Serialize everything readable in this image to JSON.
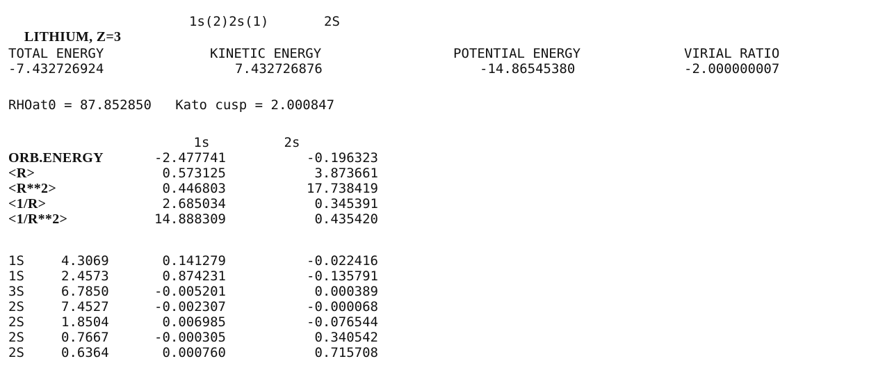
{
  "header": {
    "element": "LITHIUM, Z=3",
    "configuration": "1s(2)2s(1)",
    "term": "2S"
  },
  "energies": {
    "labels": [
      "TOTAL ENERGY",
      "KINETIC ENERGY",
      "POTENTIAL ENERGY",
      "VIRIAL RATIO"
    ],
    "values": [
      "-7.432726924",
      "7.432726876",
      "-14.86545380",
      "-2.000000007"
    ]
  },
  "density": {
    "rho_label": "RHOat0 = ",
    "rho_value": "87.852850",
    "kato_label": "Kato cusp = ",
    "kato_value": "2.000847"
  },
  "orbital_table": {
    "columns": [
      "1s",
      "2s"
    ],
    "rows": [
      {
        "label": "ORB.ENERGY",
        "values": [
          "-2.477741",
          "-0.196323"
        ]
      },
      {
        "label": "<R>",
        "values": [
          "0.573125",
          "3.873661"
        ]
      },
      {
        "label": "<R**2>",
        "values": [
          "0.446803",
          "17.738419"
        ]
      },
      {
        "label": "<1/R>",
        "values": [
          "2.685034",
          "0.345391"
        ]
      },
      {
        "label": "<1/R**2>",
        "values": [
          "14.888309",
          "0.435420"
        ]
      }
    ]
  },
  "basis_table": {
    "rows": [
      {
        "type": "1S",
        "exponent": "4.3069",
        "c1": "0.141279",
        "c2": "-0.022416"
      },
      {
        "type": "1S",
        "exponent": "2.4573",
        "c1": "0.874231",
        "c2": "-0.135791"
      },
      {
        "type": "3S",
        "exponent": "6.7850",
        "c1": "-0.005201",
        "c2": "0.000389"
      },
      {
        "type": "2S",
        "exponent": "7.4527",
        "c1": "-0.002307",
        "c2": "-0.000068"
      },
      {
        "type": "2S",
        "exponent": "1.8504",
        "c1": "0.006985",
        "c2": "-0.076544"
      },
      {
        "type": "2S",
        "exponent": "0.7667",
        "c1": "-0.000305",
        "c2": "0.340542"
      },
      {
        "type": "2S",
        "exponent": "0.6364",
        "c1": "0.000760",
        "c2": "0.715708"
      }
    ]
  }
}
